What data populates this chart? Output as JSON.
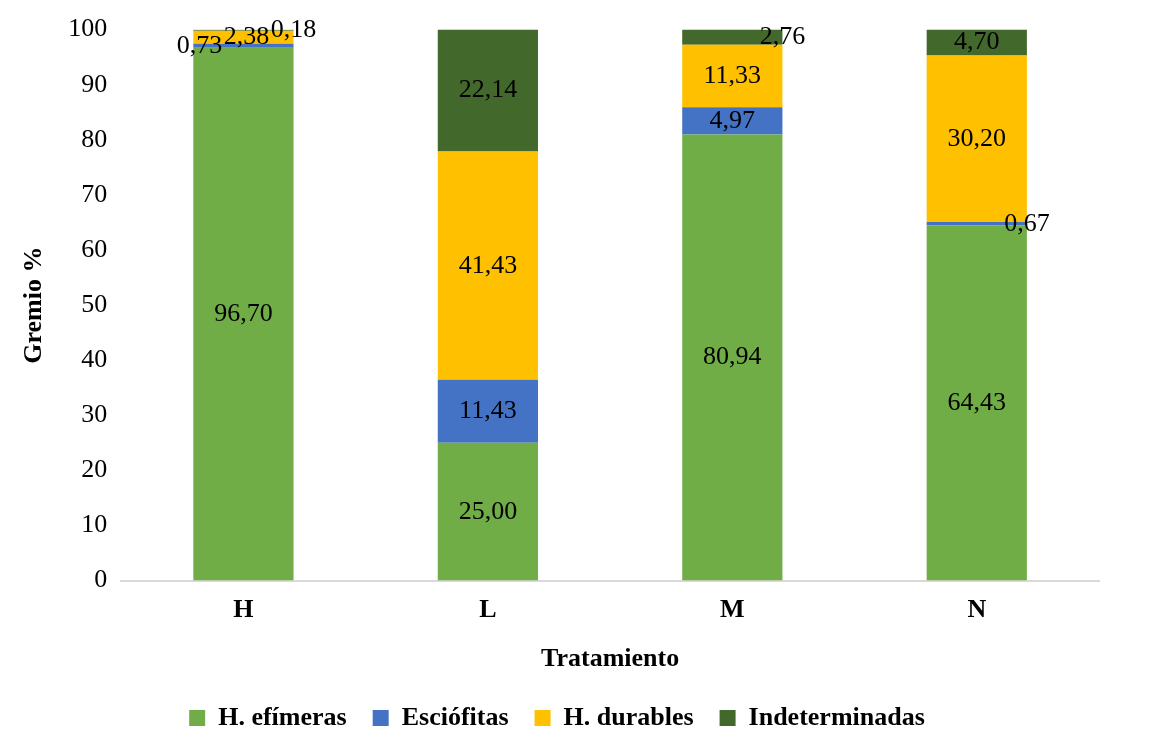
{
  "chart_data": {
    "type": "bar",
    "stacked": true,
    "xlabel": "Tratamiento",
    "ylabel": "Gremio %",
    "categories": [
      "H",
      "L",
      "M",
      "N"
    ],
    "ylim": [
      0,
      100
    ],
    "yticks": [
      0,
      10,
      20,
      30,
      40,
      50,
      60,
      70,
      80,
      90,
      100
    ],
    "grid": false,
    "legend": "bottom",
    "series": [
      {
        "name": "H. efímeras",
        "color": "#70ad47",
        "values": [
          96.7,
          25.0,
          80.94,
          64.43
        ],
        "value_labels": [
          "96,70",
          "25,00",
          "80,94",
          "64,43"
        ]
      },
      {
        "name": "Esciófitas",
        "color": "#4472c4",
        "values": [
          0.73,
          11.43,
          4.97,
          0.67
        ],
        "value_labels": [
          "0,73",
          "11,43",
          "4,97",
          "0,67"
        ]
      },
      {
        "name": "H. durables",
        "color": "#ffc000",
        "values": [
          2.38,
          41.43,
          11.33,
          30.2
        ],
        "value_labels": [
          "2,38",
          "41,43",
          "11,33",
          "30,20"
        ]
      },
      {
        "name": "Indeterminadas",
        "color": "#43682b",
        "values": [
          0.18,
          22.14,
          2.76,
          4.7
        ],
        "value_labels": [
          "0,18",
          "22,14",
          "2,76",
          "4,70"
        ]
      }
    ]
  }
}
